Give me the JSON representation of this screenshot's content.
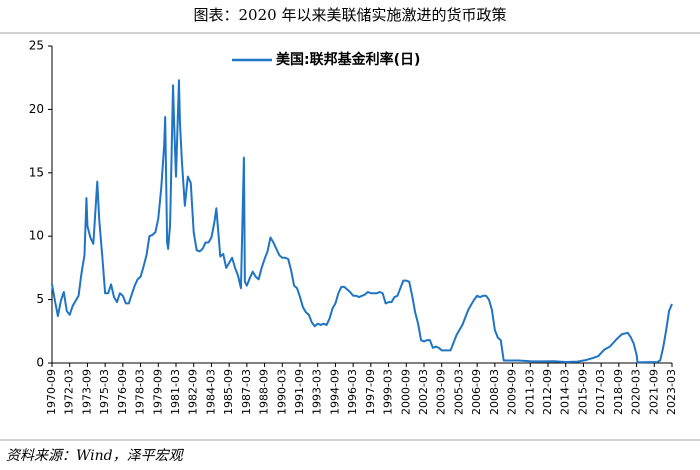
{
  "chart_data": {
    "type": "line",
    "title": "图表：2020 年以来美联储实施激进的货币政策",
    "source": "资料来源：Wind，泽平宏观",
    "x": [
      "1970-09",
      "1970-12",
      "1971-03",
      "1971-06",
      "1971-09",
      "1971-12",
      "1972-03",
      "1972-06",
      "1972-09",
      "1972-12",
      "1973-03",
      "1973-06",
      "1973-08",
      "1973-09",
      "1973-12",
      "1974-03",
      "1974-07",
      "1974-09",
      "1974-12",
      "1975-03",
      "1975-06",
      "1975-09",
      "1975-12",
      "1976-03",
      "1976-06",
      "1976-09",
      "1976-12",
      "1977-03",
      "1977-06",
      "1977-09",
      "1977-12",
      "1978-03",
      "1978-06",
      "1978-09",
      "1978-12",
      "1979-03",
      "1979-06",
      "1979-09",
      "1979-12",
      "1980-03",
      "1980-04",
      "1980-06",
      "1980-07",
      "1980-09",
      "1980-12",
      "1981-01",
      "1981-03",
      "1981-06",
      "1981-07",
      "1981-09",
      "1981-12",
      "1982-03",
      "1982-06",
      "1982-09",
      "1982-12",
      "1983-03",
      "1983-06",
      "1983-09",
      "1983-12",
      "1984-03",
      "1984-06",
      "1984-08",
      "1984-12",
      "1985-03",
      "1985-06",
      "1985-09",
      "1985-12",
      "1986-03",
      "1986-06",
      "1986-09",
      "1986-12",
      "1987-01",
      "1987-03",
      "1987-06",
      "1987-09",
      "1987-12",
      "1988-03",
      "1988-06",
      "1988-09",
      "1988-12",
      "1989-03",
      "1989-06",
      "1989-09",
      "1989-12",
      "1990-03",
      "1990-06",
      "1990-09",
      "1990-12",
      "1991-03",
      "1991-06",
      "1991-09",
      "1991-12",
      "1992-03",
      "1992-06",
      "1992-09",
      "1992-12",
      "1993-03",
      "1993-06",
      "1993-09",
      "1993-12",
      "1994-03",
      "1994-06",
      "1994-09",
      "1994-12",
      "1995-03",
      "1995-06",
      "1995-09",
      "1995-12",
      "1996-03",
      "1996-06",
      "1996-09",
      "1996-12",
      "1997-03",
      "1997-06",
      "1997-09",
      "1997-12",
      "1998-03",
      "1998-06",
      "1998-09",
      "1998-12",
      "1999-03",
      "1999-06",
      "1999-09",
      "1999-12",
      "2000-03",
      "2000-06",
      "2000-09",
      "2000-12",
      "2001-03",
      "2001-06",
      "2001-09",
      "2001-12",
      "2002-03",
      "2002-06",
      "2002-09",
      "2002-12",
      "2003-03",
      "2003-06",
      "2003-09",
      "2003-12",
      "2004-03",
      "2004-06",
      "2004-09",
      "2004-12",
      "2005-03",
      "2005-06",
      "2005-09",
      "2005-12",
      "2006-03",
      "2006-06",
      "2006-09",
      "2006-12",
      "2007-03",
      "2007-06",
      "2007-09",
      "2007-12",
      "2008-03",
      "2008-06",
      "2008-09",
      "2008-12",
      "2009-03",
      "2010-03",
      "2011-03",
      "2012-03",
      "2013-03",
      "2014-03",
      "2015-03",
      "2015-12",
      "2016-06",
      "2016-12",
      "2017-06",
      "2017-12",
      "2018-06",
      "2018-12",
      "2019-06",
      "2019-09",
      "2019-12",
      "2020-03",
      "2020-04",
      "2021-03",
      "2021-12",
      "2022-03",
      "2022-06",
      "2022-09",
      "2022-12",
      "2023-03"
    ],
    "series": [
      {
        "name": "美国:联邦基金利率(日)",
        "color": "#1f74c4",
        "values": [
          6.2,
          4.9,
          3.7,
          4.9,
          5.6,
          4.1,
          3.8,
          4.5,
          4.9,
          5.3,
          7.1,
          8.5,
          13.0,
          10.8,
          9.9,
          9.4,
          14.3,
          11.3,
          8.5,
          5.5,
          5.5,
          6.2,
          5.2,
          4.8,
          5.5,
          5.3,
          4.7,
          4.7,
          5.4,
          6.1,
          6.6,
          6.8,
          7.6,
          8.5,
          10.0,
          10.1,
          10.3,
          11.4,
          13.8,
          17.2,
          19.4,
          9.5,
          9.0,
          10.9,
          21.9,
          19.1,
          14.7,
          22.3,
          19.0,
          15.9,
          12.4,
          14.7,
          14.2,
          10.3,
          8.9,
          8.8,
          9.0,
          9.5,
          9.5,
          9.9,
          11.1,
          12.2,
          8.4,
          8.6,
          7.5,
          7.9,
          8.3,
          7.5,
          6.9,
          5.9,
          16.2,
          6.4,
          6.1,
          6.7,
          7.2,
          6.8,
          6.6,
          7.5,
          8.2,
          8.8,
          9.9,
          9.5,
          9.0,
          8.5,
          8.3,
          8.3,
          8.2,
          7.3,
          6.1,
          5.9,
          5.2,
          4.4,
          4.0,
          3.8,
          3.2,
          2.9,
          3.1,
          3.0,
          3.1,
          3.0,
          3.5,
          4.3,
          4.7,
          5.5,
          6.0,
          6.0,
          5.8,
          5.6,
          5.3,
          5.3,
          5.2,
          5.3,
          5.4,
          5.6,
          5.5,
          5.5,
          5.5,
          5.6,
          5.5,
          4.7,
          4.8,
          4.8,
          5.2,
          5.3,
          5.9,
          6.5,
          6.5,
          6.4,
          5.3,
          4.0,
          3.1,
          1.8,
          1.7,
          1.8,
          1.8,
          1.2,
          1.3,
          1.2,
          1.0,
          1.0,
          1.0,
          1.0,
          1.6,
          2.2,
          2.6,
          3.0,
          3.6,
          4.2,
          4.6,
          5.0,
          5.3,
          5.2,
          5.3,
          5.3,
          5.0,
          4.2,
          2.6,
          2.0,
          1.8,
          0.2,
          0.2,
          0.2,
          0.14,
          0.13,
          0.14,
          0.08,
          0.11,
          0.24,
          0.38,
          0.54,
          1.04,
          1.3,
          1.82,
          2.27,
          2.38,
          2.04,
          1.55,
          0.65,
          0.05,
          0.07,
          0.08,
          0.2,
          1.21,
          2.56,
          4.1,
          4.65
        ]
      }
    ],
    "xlim": [
      "1970-09",
      "2023-03"
    ],
    "xticks": [
      "1970-09",
      "1972-03",
      "1973-09",
      "1975-03",
      "1976-09",
      "1978-03",
      "1979-09",
      "1981-03",
      "1982-09",
      "1984-03",
      "1985-09",
      "1987-03",
      "1988-09",
      "1990-03",
      "1991-09",
      "1993-03",
      "1994-09",
      "1996-03",
      "1997-09",
      "1999-03",
      "2000-09",
      "2002-03",
      "2003-09",
      "2005-03",
      "2006-09",
      "2008-03",
      "2009-09",
      "2011-03",
      "2012-09",
      "2014-03",
      "2015-09",
      "2017-03",
      "2018-09",
      "2020-03",
      "2021-09",
      "2023-03"
    ],
    "ylim": [
      0,
      25
    ],
    "yticks": [
      0,
      5,
      10,
      15,
      20,
      25
    ],
    "legend": "top"
  }
}
